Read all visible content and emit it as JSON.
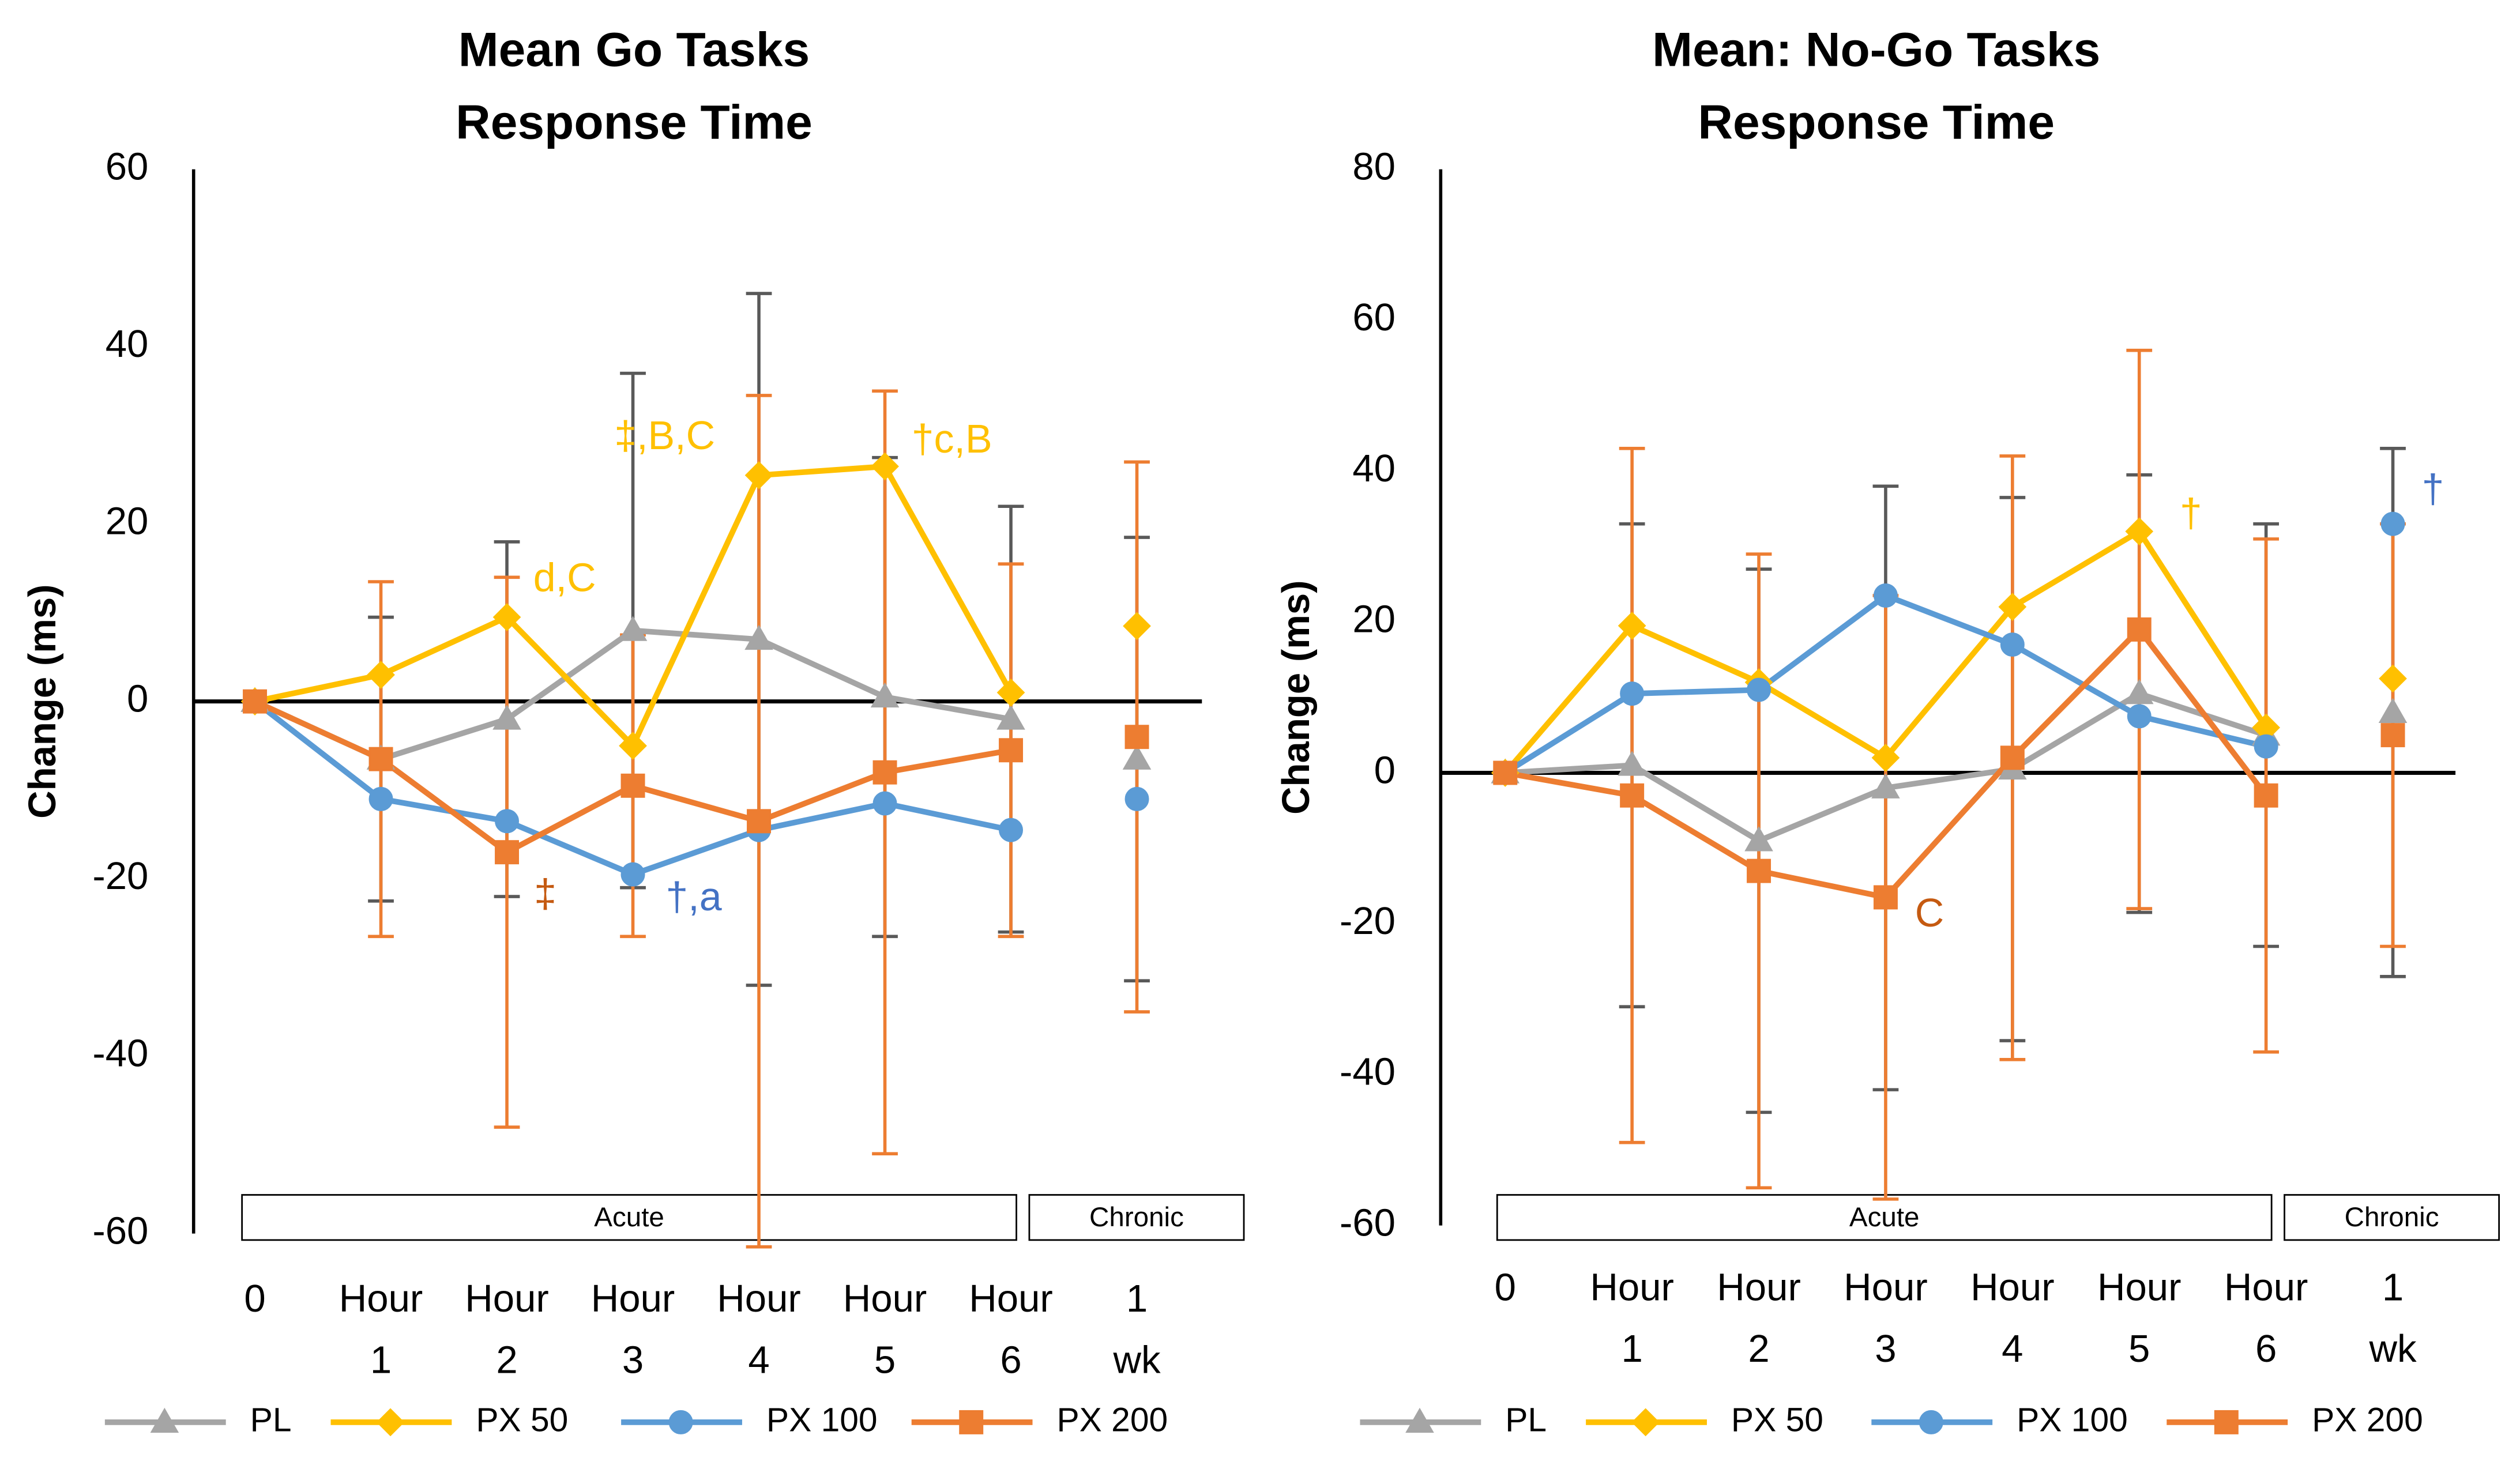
{
  "chart_data": [
    {
      "type": "line",
      "title": [
        "Mean Go Tasks",
        "Response Time"
      ],
      "y_label": "Change (ms)",
      "categories": [
        "0",
        "Hour 1",
        "Hour 2",
        "Hour 3",
        "Hour 4",
        "Hour 5",
        "Hour 6",
        "1 wk"
      ],
      "groups": [
        {
          "label": "Acute",
          "count": 7
        },
        {
          "label": "Chronic",
          "count": 1
        }
      ],
      "ylim": [
        -60,
        60
      ],
      "yticks": [
        -60,
        -40,
        -20,
        0,
        20,
        40,
        60
      ],
      "series": [
        {
          "name": "PL",
          "color": "#a5a5a5",
          "marker": "triangle",
          "values": [
            0,
            -6.5,
            -2,
            8,
            7,
            0.5,
            -2,
            -6.5
          ],
          "errors": [
            0,
            16,
            20,
            29,
            39,
            27,
            24,
            25
          ],
          "error_color": "#595959"
        },
        {
          "name": "PX 50",
          "color": "#ffc000",
          "marker": "diamond",
          "values": [
            0,
            3,
            9.5,
            -5,
            25.5,
            26.5,
            1,
            8.5
          ]
        },
        {
          "name": "PX 100",
          "color": "#5b9bd5",
          "marker": "circle",
          "values": [
            0,
            -11,
            -13.5,
            -19.5,
            -14.5,
            -11.5,
            -14.5,
            -11
          ]
        },
        {
          "name": "PX 200",
          "color": "#ed7d31",
          "marker": "square",
          "values": [
            0,
            -6.5,
            -17,
            -9.5,
            -13.5,
            -8,
            -5.5,
            -4
          ],
          "errors": [
            0,
            20,
            31,
            17,
            48,
            43,
            21,
            31
          ],
          "error_color": "#ed7d31"
        }
      ],
      "annotations": [
        {
          "text": "‡,B,C",
          "color": "#ffc000"
        },
        {
          "text": "†c,B",
          "color": "#ffc000"
        },
        {
          "text": "d,C",
          "color": "#ffc000"
        },
        {
          "text": "‡",
          "color": "#c55a11"
        },
        {
          "text": "†,a",
          "color": "#4472c4"
        }
      ]
    },
    {
      "type": "line",
      "title": [
        "Mean: No-Go Tasks",
        "Response Time"
      ],
      "y_label": "Change (ms)",
      "categories": [
        "0",
        "Hour 1",
        "Hour 2",
        "Hour 3",
        "Hour 4",
        "Hour 5",
        "Hour 6",
        "1 wk"
      ],
      "groups": [
        {
          "label": "Acute",
          "count": 7
        },
        {
          "label": "Chronic",
          "count": 1
        }
      ],
      "ylim": [
        -60,
        80
      ],
      "yticks": [
        -60,
        -40,
        -20,
        0,
        20,
        40,
        60,
        80
      ],
      "series": [
        {
          "name": "PL",
          "color": "#a5a5a5",
          "marker": "triangle",
          "values": [
            0,
            1,
            -9,
            -2,
            0.5,
            10.5,
            5,
            8
          ],
          "errors": [
            0,
            32,
            36,
            40,
            36,
            29,
            28,
            35
          ],
          "error_color": "#595959"
        },
        {
          "name": "PX 50",
          "color": "#ffc000",
          "marker": "diamond",
          "values": [
            0,
            19.5,
            12,
            2,
            22,
            32,
            6,
            12.5
          ]
        },
        {
          "name": "PX 100",
          "color": "#5b9bd5",
          "marker": "circle",
          "values": [
            0,
            10.5,
            11,
            23.5,
            17,
            7.5,
            3.5,
            33
          ]
        },
        {
          "name": "PX 200",
          "color": "#ed7d31",
          "marker": "square",
          "values": [
            0,
            -3,
            -13,
            -16.5,
            2,
            19,
            -3,
            5
          ],
          "errors": [
            0,
            46,
            42,
            40,
            40,
            37,
            34,
            28
          ],
          "error_color": "#ed7d31"
        }
      ],
      "annotations": [
        {
          "text": "†",
          "color": "#ffc000"
        },
        {
          "text": "C",
          "color": "#c55a11"
        },
        {
          "text": "†",
          "color": "#4472c4"
        }
      ]
    }
  ]
}
